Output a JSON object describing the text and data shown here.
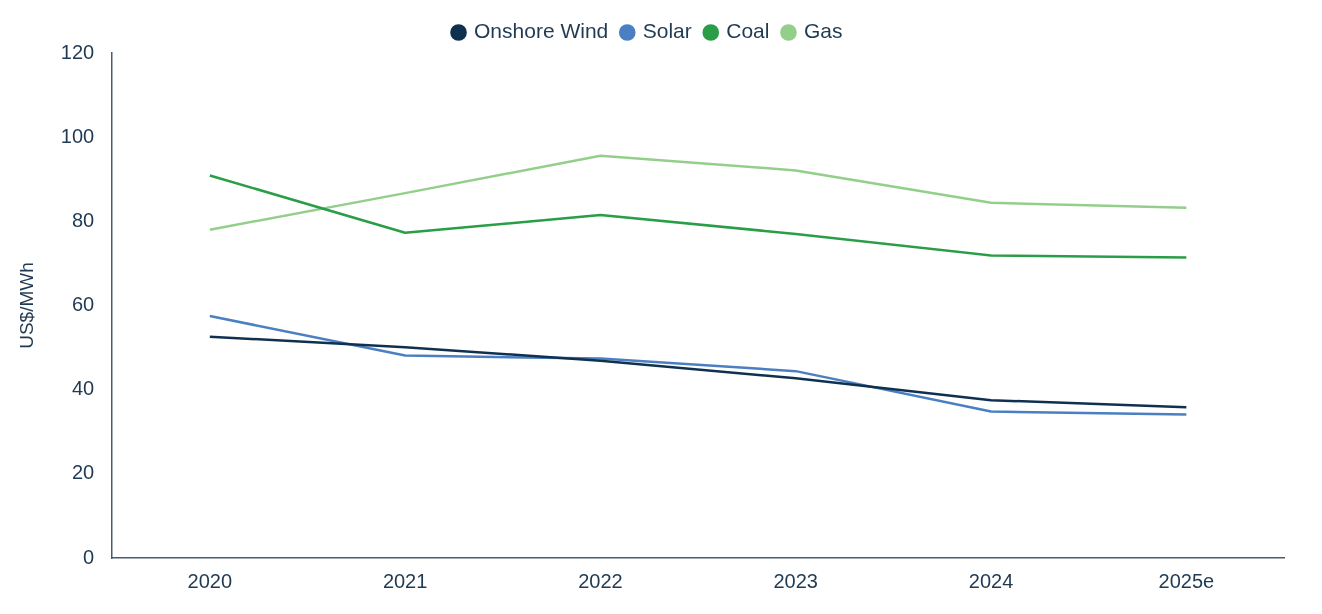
{
  "chart_data": {
    "type": "line",
    "ylabel": "US$/MWh",
    "categories": [
      "2020",
      "2021",
      "2022",
      "2023",
      "2024",
      "2025e"
    ],
    "series": [
      {
        "name": "Onshore Wind",
        "color": "#10304f",
        "values": [
          52.6,
          50.1,
          46.9,
          42.7,
          37.5,
          35.8
        ]
      },
      {
        "name": "Solar",
        "color": "#4a7fc1",
        "values": [
          57.5,
          48.1,
          47.4,
          44.4,
          34.8,
          34.1
        ]
      },
      {
        "name": "Coal",
        "color": "#2a9d47",
        "values": [
          90.9,
          77.3,
          81.5,
          77.0,
          71.9,
          71.4
        ]
      },
      {
        "name": "Gas",
        "color": "#93cf8a",
        "values": [
          78.0,
          86.7,
          95.6,
          92.1,
          84.4,
          83.2
        ]
      }
    ],
    "ylim": [
      0,
      120
    ],
    "yticks": [
      0,
      20,
      40,
      60,
      80,
      100,
      120
    ],
    "grid": false,
    "legend": "top",
    "marker": "none",
    "line_style": "solid"
  }
}
